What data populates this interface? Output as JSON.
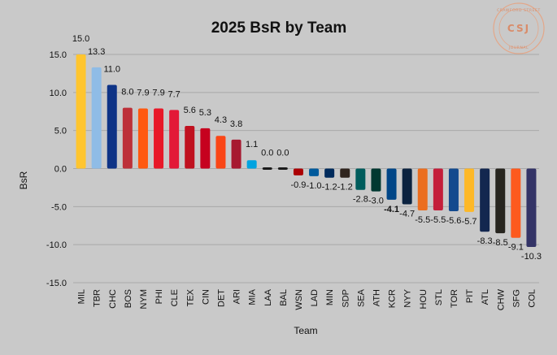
{
  "chart_data": {
    "type": "bar",
    "title": "2025 BsR by Team",
    "xlabel": "Team",
    "ylabel": "BsR",
    "ylim": [
      -15,
      15
    ],
    "yticks": [
      15,
      10,
      5,
      0,
      -5,
      -10,
      -15
    ],
    "ytick_labels": [
      "15.0",
      "10.0",
      "5.0",
      "0.0",
      "-5.0",
      "-10.0",
      "-15.0"
    ],
    "grid": true,
    "categories": [
      "MIL",
      "TBR",
      "CHC",
      "BOS",
      "NYM",
      "PHI",
      "CLE",
      "TEX",
      "CIN",
      "DET",
      "ARI",
      "MIA",
      "LAA",
      "BAL",
      "WSN",
      "LAD",
      "MIN",
      "SDP",
      "SEA",
      "ATH",
      "KCR",
      "NYY",
      "HOU",
      "STL",
      "TOR",
      "PIT",
      "ATL",
      "CHW",
      "SFG",
      "COL"
    ],
    "values": [
      15.0,
      13.3,
      11.0,
      8.0,
      7.9,
      7.9,
      7.7,
      5.6,
      5.3,
      4.3,
      3.8,
      1.1,
      0.0,
      0.0,
      -0.9,
      -1.0,
      -1.2,
      -1.2,
      -2.8,
      -3.0,
      -4.1,
      -4.7,
      -5.5,
      -5.5,
      -5.6,
      -5.7,
      -8.3,
      -8.5,
      -9.1,
      -10.3
    ],
    "value_labels": [
      "15.0",
      "13.3",
      "11.0",
      "8.0",
      "7.9",
      "7.9",
      "7.7",
      "5.6",
      "5.3",
      "4.3",
      "3.8",
      "1.1",
      "0.0",
      "0.0",
      "-0.9",
      "-1.0",
      "-1.2",
      "-1.2",
      "-2.8",
      "-3.0",
      "-4.1",
      "-4.7",
      "-5.5",
      "-5.5",
      "-5.6",
      "-5.7",
      "-8.3",
      "-8.5",
      "-9.1",
      "-10.3"
    ],
    "bold_labels": [
      "KCR"
    ],
    "colors": [
      "#ffc52f",
      "#8fbce6",
      "#0e3386",
      "#bd3039",
      "#ff5910",
      "#e81828",
      "#e31937",
      "#c0111f",
      "#c6011f",
      "#fa4616",
      "#a71930",
      "#00a3e0",
      "#1a1a1a",
      "#1a1a1a",
      "#ab0003",
      "#005a9c",
      "#002b5c",
      "#2f241d",
      "#005c5c",
      "#003831",
      "#004687",
      "#0c2340",
      "#eb6e1f",
      "#c41e3a",
      "#134a8e",
      "#fdb827",
      "#13274f",
      "#27251f",
      "#fd5a1e",
      "#333366"
    ]
  },
  "watermark": {
    "top_text": "CRAWFORD STREET",
    "initials": "CSJ",
    "bottom_text": "JOURNAL"
  }
}
